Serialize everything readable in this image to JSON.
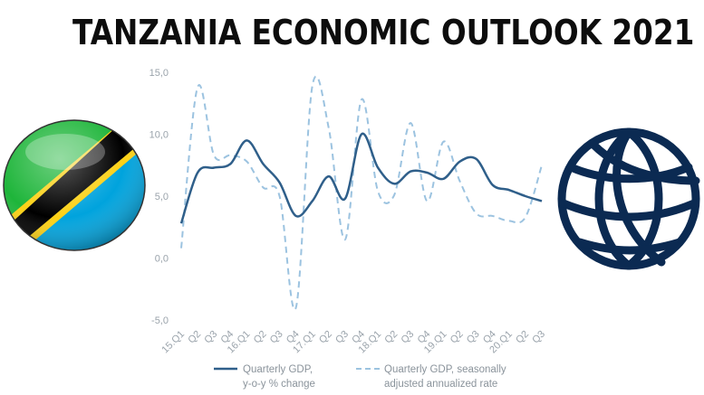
{
  "header": {
    "title": "TANZANIA ECONOMIC OUTLOOK 2021"
  },
  "colors": {
    "solid_series": "#2f5f8a",
    "dashed_series": "#9cc3e0",
    "flag_green": "#1eb53a",
    "flag_blue": "#00a3dd",
    "flag_yellow": "#fcd116",
    "flag_black": "#000000",
    "globe_navy": "#0b2a52"
  },
  "icons": {
    "flag": "tanzania-flag-icon",
    "logo": "world-bank-globe-icon"
  },
  "chart_data": {
    "type": "line",
    "ylim": [
      -5,
      15
    ],
    "yticks": [
      "-5,0",
      "0,0",
      "5,0",
      "10,0",
      "15,0"
    ],
    "categories": [
      "15.Q1",
      "Q2",
      "Q3",
      "Q4",
      "16.Q1",
      "Q2",
      "Q3",
      "Q4",
      "17.Q1",
      "Q2",
      "Q3",
      "Q4",
      "18.Q1",
      "Q2",
      "Q3",
      "Q4",
      "19.Q1",
      "Q2",
      "Q3",
      "Q4",
      "20.Q1",
      "Q2",
      "Q3"
    ],
    "legend_position": "bottom",
    "grid": false,
    "series": [
      {
        "name": "Quarterly GDP,\ny-o-y % change",
        "style": "solid",
        "values": [
          2.8,
          6.9,
          7.3,
          7.6,
          9.5,
          7.6,
          6.1,
          3.4,
          4.6,
          6.6,
          4.8,
          10.0,
          7.3,
          6.0,
          7.0,
          6.9,
          6.4,
          7.8,
          8.0,
          5.9,
          5.5,
          5.0,
          4.6
        ]
      },
      {
        "name": "Quarterly GDP, seasonally\nadjusted annualized rate",
        "style": "dashed",
        "values": [
          0.8,
          13.8,
          8.3,
          8.3,
          7.8,
          5.7,
          5.0,
          -4.0,
          13.9,
          10.5,
          1.5,
          12.8,
          5.4,
          5.1,
          10.9,
          4.6,
          9.4,
          6.2,
          3.6,
          3.4,
          3.0,
          3.3,
          7.5
        ]
      }
    ]
  }
}
